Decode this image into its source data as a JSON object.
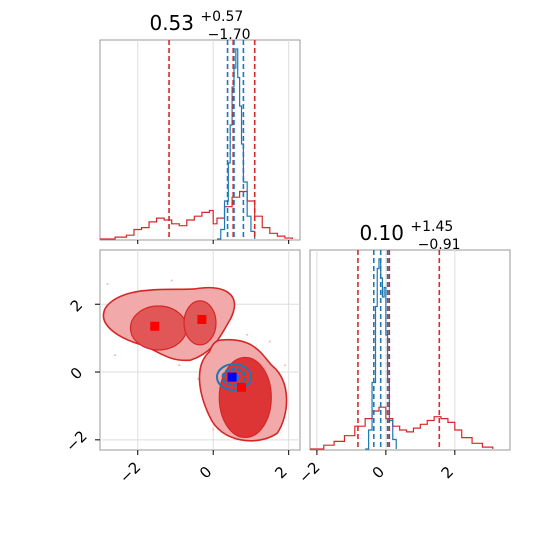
{
  "chart_data": {
    "type": "corner",
    "colors": {
      "primary": "#1f77b4",
      "secondary": "#d62728",
      "truth_point": "#0000ff",
      "marker": "#ff0000"
    },
    "panels": [
      {
        "id": "hist-p1",
        "type": "histogram",
        "title": {
          "value": "0.53",
          "upper": "+0.57",
          "lower": "−1.70"
        },
        "xlim": [
          -3.0,
          2.3
        ],
        "series": [
          {
            "name": "",
            "color": "#d62728",
            "bins": [
              [
                -3.0,
                0
              ],
              [
                -2.6,
                0.01
              ],
              [
                -2.3,
                0.02
              ],
              [
                -2.1,
                0.05
              ],
              [
                -1.9,
                0.06
              ],
              [
                -1.7,
                0.09
              ],
              [
                -1.5,
                0.11
              ],
              [
                -1.3,
                0.1
              ],
              [
                -1.1,
                0.08
              ],
              [
                -0.9,
                0.07
              ],
              [
                -0.7,
                0.1
              ],
              [
                -0.5,
                0.12
              ],
              [
                -0.3,
                0.14
              ],
              [
                -0.1,
                0.15
              ],
              [
                0.0,
                0.08
              ],
              [
                0.1,
                0.11
              ],
              [
                0.3,
                0.17
              ],
              [
                0.5,
                0.22
              ],
              [
                0.7,
                0.25
              ],
              [
                0.9,
                0.2
              ],
              [
                1.1,
                0.12
              ],
              [
                1.3,
                0.06
              ],
              [
                1.5,
                0.03
              ],
              [
                1.7,
                0.015
              ],
              [
                1.9,
                0.005
              ],
              [
                2.1,
                0.0
              ]
            ],
            "quantiles": [
              -1.17,
              0.53,
              1.1
            ]
          },
          {
            "name": "",
            "color": "#1f77b4",
            "bins": [
              [
                0.1,
                0
              ],
              [
                0.2,
                0.05
              ],
              [
                0.3,
                0.2
              ],
              [
                0.4,
                0.4
              ],
              [
                0.45,
                0.6
              ],
              [
                0.5,
                0.8
              ],
              [
                0.55,
                0.9
              ],
              [
                0.6,
                1.0
              ],
              [
                0.65,
                0.85
              ],
              [
                0.7,
                0.7
              ],
              [
                0.75,
                0.5
              ],
              [
                0.8,
                0.3
              ],
              [
                0.9,
                0.12
              ],
              [
                1.0,
                0.04
              ],
              [
                1.1,
                0.0
              ]
            ],
            "quantiles": [
              0.38,
              0.55,
              0.8
            ]
          }
        ]
      },
      {
        "id": "hist-p2",
        "type": "histogram",
        "title": {
          "value": "0.10",
          "upper": "+1.45",
          "lower": "−0.91"
        },
        "xlim": [
          -2.2,
          3.6
        ],
        "xticks": [
          "−2",
          "0",
          "2"
        ],
        "series": [
          {
            "name": "",
            "color": "#d62728",
            "bins": [
              [
                -2.2,
                0
              ],
              [
                -1.8,
                0.02
              ],
              [
                -1.5,
                0.04
              ],
              [
                -1.2,
                0.07
              ],
              [
                -0.9,
                0.12
              ],
              [
                -0.6,
                0.16
              ],
              [
                -0.4,
                0.2
              ],
              [
                -0.2,
                0.22
              ],
              [
                0.0,
                0.16
              ],
              [
                0.2,
                0.12
              ],
              [
                0.4,
                0.1
              ],
              [
                0.6,
                0.09
              ],
              [
                0.8,
                0.11
              ],
              [
                1.0,
                0.13
              ],
              [
                1.2,
                0.15
              ],
              [
                1.4,
                0.17
              ],
              [
                1.6,
                0.16
              ],
              [
                1.8,
                0.14
              ],
              [
                2.0,
                0.1
              ],
              [
                2.2,
                0.06
              ],
              [
                2.5,
                0.03
              ],
              [
                2.8,
                0.01
              ],
              [
                3.1,
                0.0
              ]
            ],
            "quantiles": [
              -0.81,
              0.1,
              1.55
            ]
          },
          {
            "name": "",
            "color": "#1f77b4",
            "bins": [
              [
                -0.6,
                0
              ],
              [
                -0.5,
                0.1
              ],
              [
                -0.4,
                0.35
              ],
              [
                -0.3,
                0.75
              ],
              [
                -0.25,
                0.95
              ],
              [
                -0.2,
                1.0
              ],
              [
                -0.15,
                0.9
              ],
              [
                -0.1,
                0.8
              ],
              [
                -0.05,
                0.85
              ],
              [
                0.0,
                0.6
              ],
              [
                0.05,
                0.35
              ],
              [
                0.1,
                0.15
              ],
              [
                0.2,
                0.05
              ],
              [
                0.3,
                0.0
              ]
            ],
            "quantiles": [
              -0.35,
              -0.15,
              0.05
            ]
          }
        ]
      },
      {
        "id": "contour-2d",
        "type": "contour",
        "xlim": [
          -3.0,
          2.3
        ],
        "ylim": [
          -2.3,
          3.6
        ],
        "xticks": [
          "−2",
          "0",
          "2"
        ],
        "yticks": [
          "−2",
          "0",
          "2"
        ],
        "modes": [
          {
            "name": "",
            "color": "#d62728",
            "cx": -1.4,
            "cy": 1.35
          },
          {
            "name": "",
            "color": "#d62728",
            "cx": -0.3,
            "cy": 1.55
          },
          {
            "name": "",
            "color": "#d62728",
            "cx": 0.6,
            "cy": -0.35
          },
          {
            "name": "",
            "color": "#1f77b4",
            "cx": 0.55,
            "cy": -0.15
          }
        ],
        "markers": [
          {
            "type": "square",
            "color": "#ff0000",
            "x": -1.55,
            "y": 1.35
          },
          {
            "type": "square",
            "color": "#ff0000",
            "x": -0.3,
            "y": 1.55
          },
          {
            "type": "square",
            "color": "#ff0000",
            "x": 0.75,
            "y": -0.45
          },
          {
            "type": "square",
            "color": "#0000ff",
            "x": 0.5,
            "y": -0.15
          }
        ]
      }
    ],
    "grid": true
  }
}
